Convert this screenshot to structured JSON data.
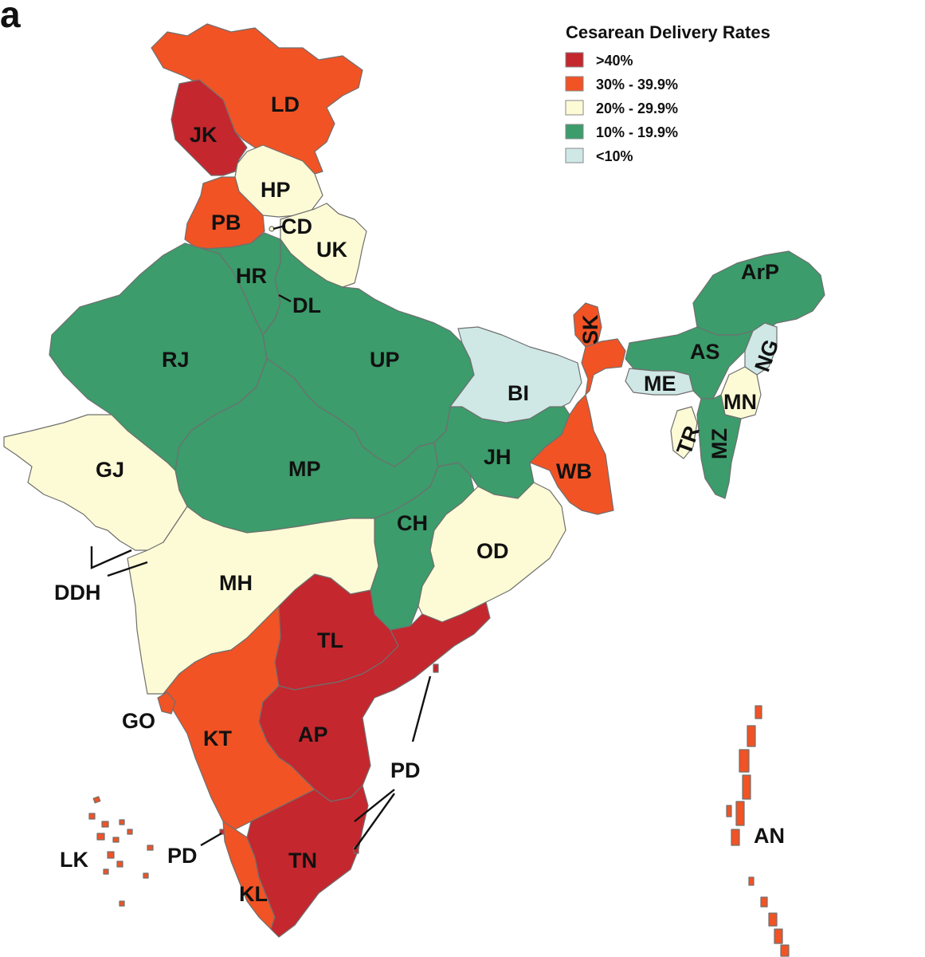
{
  "panel_label": "a",
  "colors": {
    "gt40": "#c4272e",
    "r30_39": "#f15325",
    "r20_29": "#fdfbd5",
    "r10_19": "#3c9c6b",
    "lt10": "#cfe8e6"
  },
  "legend": {
    "title": "Cesarean Delivery Rates",
    "items": [
      {
        "label": ">40%",
        "color": "#c4272e"
      },
      {
        "label": "30% - 39.9%",
        "color": "#f15325"
      },
      {
        "label": "20% - 29.9%",
        "color": "#fdfbd5"
      },
      {
        "label": "10% - 19.9%",
        "color": "#3c9c6b"
      },
      {
        "label": "<10%",
        "color": "#cfe8e6"
      }
    ]
  },
  "regions": [
    {
      "code": "LD",
      "category": "30% - 39.9%"
    },
    {
      "code": "JK",
      "category": ">40%"
    },
    {
      "code": "HP",
      "category": "20% - 29.9%"
    },
    {
      "code": "PB",
      "category": "30% - 39.9%"
    },
    {
      "code": "CD",
      "category": "20% - 29.9%"
    },
    {
      "code": "UK",
      "category": "20% - 29.9%"
    },
    {
      "code": "HR",
      "category": "10% - 19.9%"
    },
    {
      "code": "DL",
      "category": "20% - 29.9%"
    },
    {
      "code": "RJ",
      "category": "10% - 19.9%"
    },
    {
      "code": "UP",
      "category": "10% - 19.9%"
    },
    {
      "code": "BI",
      "category": "<10%"
    },
    {
      "code": "SK",
      "category": "30% - 39.9%"
    },
    {
      "code": "ArP",
      "category": "10% - 19.9%"
    },
    {
      "code": "AS",
      "category": "10% - 19.9%"
    },
    {
      "code": "NG",
      "category": "<10%"
    },
    {
      "code": "ME",
      "category": "<10%"
    },
    {
      "code": "MN",
      "category": "20% - 29.9%"
    },
    {
      "code": "TR",
      "category": "20% - 29.9%"
    },
    {
      "code": "MZ",
      "category": "10% - 19.9%"
    },
    {
      "code": "GJ",
      "category": "20% - 29.9%"
    },
    {
      "code": "MP",
      "category": "10% - 19.9%"
    },
    {
      "code": "JH",
      "category": "10% - 19.9%"
    },
    {
      "code": "WB",
      "category": "30% - 39.9%"
    },
    {
      "code": "CH",
      "category": "10% - 19.9%"
    },
    {
      "code": "OD",
      "category": "20% - 29.9%"
    },
    {
      "code": "DDH",
      "category": "20% - 29.9%"
    },
    {
      "code": "MH",
      "category": "20% - 29.9%"
    },
    {
      "code": "TL",
      "category": ">40%"
    },
    {
      "code": "GO",
      "category": "30% - 39.9%"
    },
    {
      "code": "KT",
      "category": "30% - 39.9%"
    },
    {
      "code": "AP",
      "category": ">40%"
    },
    {
      "code": "PD",
      "category": ">40%"
    },
    {
      "code": "TN",
      "category": ">40%"
    },
    {
      "code": "KL",
      "category": "30% - 39.9%"
    },
    {
      "code": "LK",
      "category": "30% - 39.9%"
    },
    {
      "code": "AN",
      "category": "30% - 39.9%"
    }
  ]
}
